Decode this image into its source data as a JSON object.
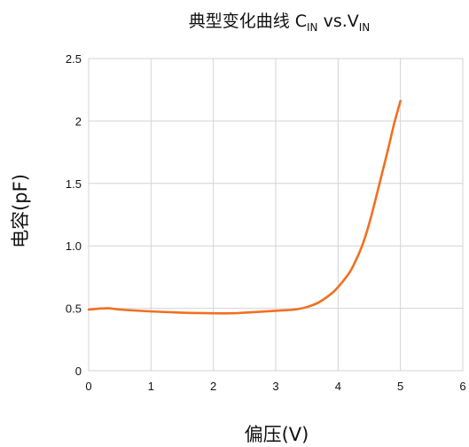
{
  "chart_data": {
    "type": "line",
    "title": {
      "prefix": "典型变化曲线 C",
      "sub1": "IN",
      "middle": " vs.V",
      "sub2": "IN"
    },
    "xlabel": "偏压(V)",
    "ylabel": "电容(pF)",
    "xlim": [
      0,
      6
    ],
    "ylim": [
      0,
      2.5
    ],
    "x_ticks": [
      "0",
      "1",
      "2",
      "3",
      "4",
      "5",
      "6"
    ],
    "x_tick_values": [
      0,
      1,
      2,
      3,
      4,
      5,
      6
    ],
    "y_ticks": [
      "0",
      "0.5",
      "1.0",
      "1.5",
      "2",
      "2.5"
    ],
    "y_tick_values": [
      0,
      0.5,
      1.0,
      1.5,
      2.0,
      2.5
    ],
    "grid": true,
    "series": [
      {
        "color": "#f07020",
        "x": [
          0,
          0.3,
          0.5,
          1.0,
          1.5,
          2.0,
          2.3,
          2.5,
          3.0,
          3.3,
          3.5,
          3.7,
          3.9,
          4.0,
          4.1,
          4.2,
          4.3,
          4.4,
          4.5,
          4.6,
          4.7,
          4.8,
          4.9,
          5.0
        ],
        "y": [
          0.49,
          0.5,
          0.49,
          0.475,
          0.465,
          0.46,
          0.46,
          0.465,
          0.48,
          0.49,
          0.51,
          0.55,
          0.62,
          0.67,
          0.73,
          0.8,
          0.9,
          1.02,
          1.18,
          1.37,
          1.57,
          1.77,
          1.98,
          2.16
        ]
      }
    ]
  }
}
